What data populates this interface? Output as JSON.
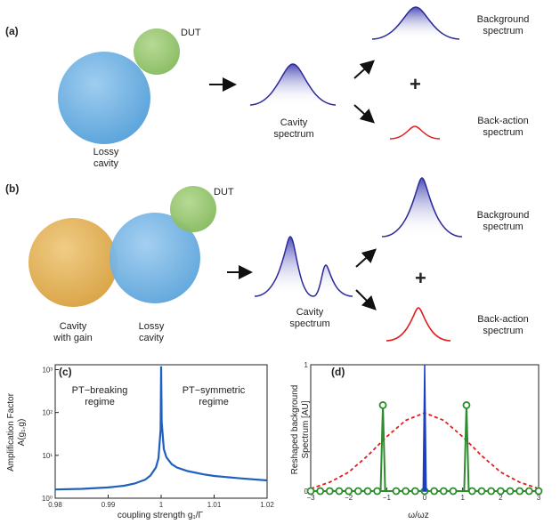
{
  "panels": {
    "a": {
      "label": "(a)",
      "dut": "DUT",
      "lossy_cavity": [
        "Lossy",
        "cavity"
      ],
      "cavity_spectrum": [
        "Cavity",
        "spectrum"
      ],
      "background_spectrum": [
        "Background",
        "spectrum"
      ],
      "backaction_spectrum": [
        "Back-action",
        "spectrum"
      ],
      "plus": "+"
    },
    "b": {
      "label": "(b)",
      "dut": "DUT",
      "gain_cavity": [
        "Cavity",
        "with gain"
      ],
      "lossy_cavity": [
        "Lossy",
        "cavity"
      ],
      "cavity_spectrum": [
        "Cavity",
        "spectrum"
      ],
      "background_spectrum": [
        "Background",
        "spectrum"
      ],
      "backaction_spectrum": [
        "Back-action",
        "spectrum"
      ],
      "plus": "+"
    },
    "c": {
      "label": "(c)",
      "region_left": [
        "PT−breaking",
        "regime"
      ],
      "region_right": [
        "PT−symmetric",
        "regime"
      ]
    },
    "d": {
      "label": "(d)"
    }
  },
  "colors": {
    "lossy_cavity": "#6aaee0",
    "gain_cavity": "#e3b25a",
    "dut": "#93c36a",
    "spectrum": "#2a2a9a",
    "backaction": "#e21b1b",
    "curve_c": "#1f5fbf",
    "curve_d_blue": "#1c3fc2",
    "curve_d_green": "#2e8b2e",
    "curve_d_red": "#e02020"
  },
  "chart_data": [
    {
      "type": "line",
      "title": "",
      "xlabel": "coupling strength g₁/Γ",
      "ylabel": [
        "Amplification Factor",
        "A(g₁,g)"
      ],
      "x_ticks": [
        "0.98",
        "0.99",
        "1",
        "1.01",
        "1.02"
      ],
      "y_ticks": [
        "10⁰",
        "10¹",
        "10²",
        "10³"
      ],
      "y_scale": "log",
      "xlim": [
        0.98,
        1.02
      ],
      "ylim": [
        1,
        1300
      ],
      "series": [
        {
          "x": [
            0.98,
            0.985,
            0.99,
            0.993,
            0.995,
            0.997,
            0.998,
            0.999,
            0.9995,
            0.9999,
            1.0,
            1.0001,
            1.0005,
            1.001,
            1.002,
            1.003,
            1.005,
            1.008,
            1.01,
            1.015,
            1.02
          ],
          "y": [
            1.6,
            1.65,
            1.78,
            1.95,
            2.2,
            2.7,
            3.4,
            5.2,
            8.5,
            40,
            1200,
            60,
            14,
            9,
            6.2,
            5.2,
            4.3,
            3.6,
            3.3,
            2.9,
            2.6
          ]
        }
      ]
    },
    {
      "type": "line",
      "title": "",
      "xlabel": "ω/ωz",
      "ylabel": [
        "Reshaped background",
        "Spectrum [AU]"
      ],
      "x_ticks": [
        "−3",
        "−2",
        "−1",
        "0",
        "1",
        "2",
        "3"
      ],
      "y_ticks": [
        "0",
        "1"
      ],
      "xlim": [
        -3,
        3
      ],
      "ylim": [
        0,
        1
      ],
      "series": [
        {
          "style": "dashed",
          "x": [
            -3,
            -2.5,
            -2,
            -1.5,
            -1,
            -0.5,
            0,
            0.5,
            1,
            1.5,
            2,
            2.5,
            3
          ],
          "y": [
            0.02,
            0.07,
            0.15,
            0.28,
            0.43,
            0.56,
            0.62,
            0.56,
            0.43,
            0.28,
            0.15,
            0.07,
            0.02
          ]
        },
        {
          "style": "solid-circles",
          "peaks_x": [
            -1.1,
            1.1
          ],
          "peak_height": 0.68,
          "marker_x": [
            -3,
            -2.75,
            -2.5,
            -2.25,
            -2,
            -1.75,
            -1.5,
            -1.25,
            -1.1,
            -0.75,
            -0.5,
            -0.25,
            0,
            0.25,
            0.5,
            0.75,
            1.1,
            1.25,
            1.5,
            1.75,
            2,
            2.25,
            2.5,
            2.75,
            3
          ]
        },
        {
          "style": "solid",
          "peak_x": 0,
          "peak_height": 1.0
        }
      ]
    }
  ]
}
